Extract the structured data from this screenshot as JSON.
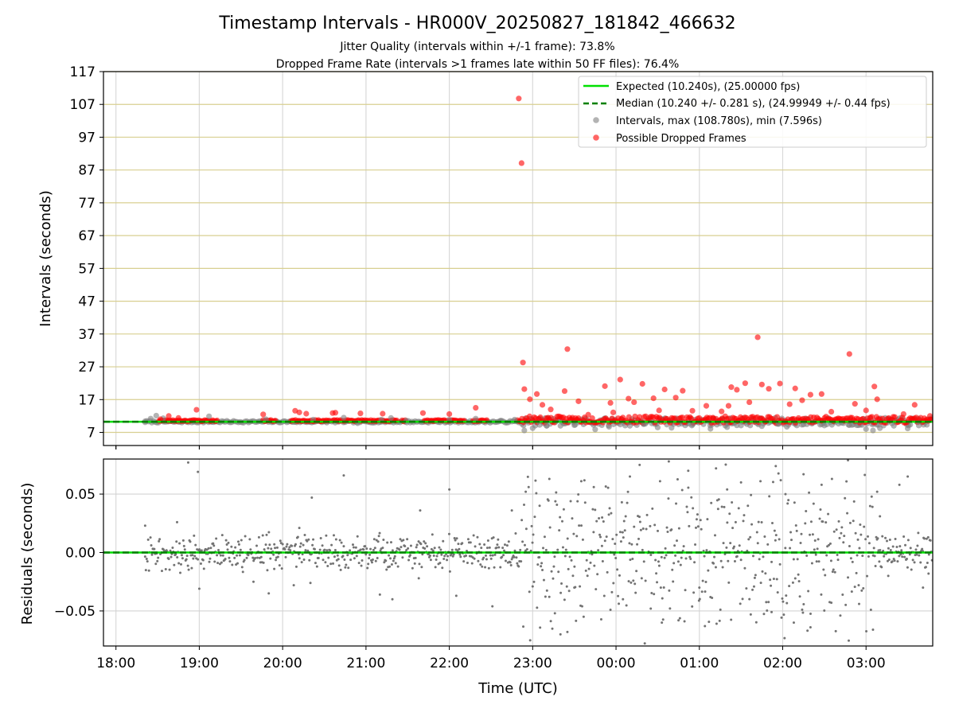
{
  "figure": {
    "title": "Timestamp Intervals - HR000V_20250827_181842_466632",
    "subtitle_1": "Jitter Quality (intervals within +/-1 frame): 73.8%",
    "subtitle_2": "Dropped Frame Rate (intervals >1 frames late within 50 FF files): 76.4%"
  },
  "chart_data": [
    {
      "type": "scatter",
      "panel": "top",
      "ylabel": "Intervals (seconds)",
      "xlabel": "",
      "xlim": [
        "17:51",
        "03:48"
      ],
      "ylim": [
        3,
        117
      ],
      "yticks": [
        7,
        17,
        27,
        37,
        47,
        57,
        67,
        77,
        87,
        97,
        107,
        117
      ],
      "xticks": [
        "18:00",
        "19:00",
        "20:00",
        "21:00",
        "22:00",
        "23:00",
        "00:00",
        "01:00",
        "02:00",
        "03:00"
      ],
      "grid": true,
      "legend_position": "top-right",
      "lines": [
        {
          "name": "Expected (10.240s), (25.00000 fps)",
          "y": 10.24,
          "color": "#00e000",
          "style": "solid"
        },
        {
          "name": "Median (10.240 +/- 0.281 s), (24.99949 +/- 0.44 fps)",
          "y": 10.24,
          "color": "#008000",
          "style": "dashed"
        }
      ],
      "series": [
        {
          "name": "Intervals, max (108.780s), min (7.596s)",
          "color": "#808080",
          "points": [
            [
              "18:21",
              10.4
            ],
            [
              "18:25",
              11.2
            ],
            [
              "18:29",
              12.1
            ],
            [
              "18:34",
              11.3
            ],
            [
              "19:07",
              11.9
            ],
            [
              "19:48",
              11.0
            ],
            [
              "20:22",
              10.9
            ],
            [
              "20:44",
              11.5
            ],
            [
              "20:54",
              9.8
            ],
            [
              "21:11",
              10.9
            ],
            [
              "21:18",
              11.4
            ],
            [
              "21:29",
              10.6
            ],
            [
              "22:00",
              10.9
            ],
            [
              "22:19",
              11.2
            ],
            [
              "22:37",
              10.6
            ],
            [
              "22:47",
              10.9
            ],
            [
              "22:54",
              7.6
            ],
            [
              "23:00",
              8.3
            ],
            [
              "23:05",
              9.3
            ],
            [
              "23:10",
              9.0
            ],
            [
              "23:20",
              9.0
            ],
            [
              "23:30",
              9.2
            ],
            [
              "23:45",
              7.9
            ],
            [
              "23:55",
              8.7
            ],
            [
              "00:10",
              9.0
            ],
            [
              "00:20",
              9.6
            ],
            [
              "00:30",
              8.5
            ],
            [
              "00:40",
              8.4
            ],
            [
              "00:55",
              9.4
            ],
            [
              "01:08",
              8.1
            ],
            [
              "01:20",
              8.6
            ],
            [
              "01:30",
              9.1
            ],
            [
              "01:45",
              8.9
            ],
            [
              "01:57",
              9.6
            ],
            [
              "02:03",
              8.7
            ],
            [
              "02:15",
              9.4
            ],
            [
              "02:30",
              9.1
            ],
            [
              "02:48",
              9.2
            ],
            [
              "03:00",
              8.0
            ],
            [
              "03:05",
              7.6
            ],
            [
              "03:10",
              8.3
            ],
            [
              "03:20",
              9.0
            ],
            [
              "03:30",
              8.2
            ],
            [
              "03:38",
              9.1
            ]
          ]
        },
        {
          "name": "Possible Dropped Frames",
          "color": "#ff0000",
          "points": [
            [
              "18:32",
              11.0
            ],
            [
              "18:38",
              12.0
            ],
            [
              "18:45",
              11.4
            ],
            [
              "18:58",
              13.9
            ],
            [
              "19:46",
              12.5
            ],
            [
              "20:09",
              13.6
            ],
            [
              "20:12",
              13.1
            ],
            [
              "20:17",
              12.7
            ],
            [
              "20:36",
              12.9
            ],
            [
              "20:38",
              13.0
            ],
            [
              "20:56",
              12.8
            ],
            [
              "21:12",
              12.7
            ],
            [
              "21:41",
              12.9
            ],
            [
              "22:00",
              12.6
            ],
            [
              "22:19",
              14.5
            ],
            [
              "22:50",
              108.8
            ],
            [
              "22:52",
              89.1
            ],
            [
              "22:53",
              28.3
            ],
            [
              "22:54",
              20.2
            ],
            [
              "22:58",
              17.1
            ],
            [
              "23:03",
              18.7
            ],
            [
              "23:07",
              15.4
            ],
            [
              "23:13",
              14.0
            ],
            [
              "23:23",
              19.6
            ],
            [
              "23:25",
              32.4
            ],
            [
              "23:33",
              16.5
            ],
            [
              "23:40",
              12.4
            ],
            [
              "23:52",
              21.1
            ],
            [
              "23:56",
              16.0
            ],
            [
              "23:58",
              13.1
            ],
            [
              "00:03",
              23.1
            ],
            [
              "00:09",
              17.3
            ],
            [
              "00:13",
              16.2
            ],
            [
              "00:19",
              21.8
            ],
            [
              "00:27",
              17.4
            ],
            [
              "00:31",
              13.7
            ],
            [
              "00:35",
              20.1
            ],
            [
              "00:43",
              17.6
            ],
            [
              "00:48",
              19.7
            ],
            [
              "00:55",
              13.6
            ],
            [
              "01:05",
              15.1
            ],
            [
              "01:10",
              11.2
            ],
            [
              "01:16",
              13.4
            ],
            [
              "01:21",
              15.1
            ],
            [
              "01:23",
              20.8
            ],
            [
              "01:27",
              20.0
            ],
            [
              "01:33",
              22.0
            ],
            [
              "01:36",
              16.2
            ],
            [
              "01:42",
              36.0
            ],
            [
              "01:45",
              21.6
            ],
            [
              "01:50",
              20.3
            ],
            [
              "01:58",
              21.9
            ],
            [
              "02:05",
              15.6
            ],
            [
              "02:09",
              20.4
            ],
            [
              "02:14",
              16.8
            ],
            [
              "02:20",
              18.5
            ],
            [
              "02:28",
              18.7
            ],
            [
              "02:35",
              13.3
            ],
            [
              "02:48",
              30.9
            ],
            [
              "02:52",
              15.7
            ],
            [
              "03:00",
              13.7
            ],
            [
              "03:06",
              21.0
            ],
            [
              "03:08",
              17.1
            ],
            [
              "03:27",
              12.6
            ],
            [
              "03:35",
              15.4
            ],
            [
              "03:42",
              11.3
            ],
            [
              "03:46",
              12.0
            ]
          ]
        }
      ]
    },
    {
      "type": "scatter",
      "panel": "bottom",
      "ylabel": "Residuals (seconds)",
      "xlabel": "Time (UTC)",
      "xlim": [
        "17:51",
        "03:48"
      ],
      "ylim": [
        -0.08,
        0.08
      ],
      "yticks": [
        -0.05,
        0.0,
        0.05
      ],
      "ytick_labels": [
        "−0.05",
        "0.00",
        "0.05"
      ],
      "xticks": [
        "18:00",
        "19:00",
        "20:00",
        "21:00",
        "22:00",
        "23:00",
        "00:00",
        "01:00",
        "02:00",
        "03:00"
      ],
      "grid": true,
      "lines": [
        {
          "name": "",
          "y": 0.0,
          "color": "#00e000",
          "style": "solid"
        },
        {
          "name": "",
          "y": 0.0,
          "color": "#008000",
          "style": "dashed"
        }
      ],
      "series": [
        {
          "name": "",
          "color": "#737373",
          "points": [
            [
              "18:21",
              0.023
            ],
            [
              "18:44",
              0.026
            ],
            [
              "18:52",
              0.077
            ],
            [
              "18:59",
              0.069
            ],
            [
              "19:00",
              -0.031
            ],
            [
              "19:39",
              -0.025
            ],
            [
              "19:50",
              -0.035
            ],
            [
              "19:54",
              0.007
            ],
            [
              "20:08",
              -0.028
            ],
            [
              "20:12",
              0.021
            ],
            [
              "20:20",
              -0.026
            ],
            [
              "20:21",
              0.047
            ],
            [
              "20:44",
              0.066
            ],
            [
              "21:10",
              -0.036
            ],
            [
              "21:19",
              -0.04
            ],
            [
              "21:38",
              -0.022
            ],
            [
              "21:39",
              0.036
            ],
            [
              "22:00",
              0.054
            ],
            [
              "22:05",
              -0.037
            ],
            [
              "22:31",
              -0.046
            ],
            [
              "22:45",
              0.036
            ],
            [
              "22:55",
              0.052
            ],
            [
              "23:00",
              -0.029
            ],
            [
              "23:05",
              0.04
            ],
            [
              "23:12",
              0.063
            ],
            [
              "23:16",
              -0.052
            ],
            [
              "23:20",
              -0.07
            ],
            [
              "23:25",
              -0.068
            ],
            [
              "23:30",
              -0.03
            ],
            [
              "23:35",
              0.061
            ],
            [
              "23:44",
              0.056
            ],
            [
              "23:50",
              0.03
            ],
            [
              "23:56",
              -0.049
            ],
            [
              "24:05",
              -0.04
            ],
            [
              "24:10",
              0.065
            ],
            [
              "24:17",
              0.075
            ],
            [
              "24:25",
              -0.048
            ],
            [
              "24:33",
              -0.06
            ],
            [
              "24:38",
              0.078
            ],
            [
              "24:45",
              -0.058
            ],
            [
              "24:52",
              0.07
            ],
            [
              "25:00",
              -0.03
            ],
            [
              "25:04",
              -0.063
            ],
            [
              "25:12",
              0.072
            ],
            [
              "25:20",
              0.054
            ],
            [
              "25:30",
              0.06
            ],
            [
              "25:37",
              -0.053
            ],
            [
              "25:44",
              0.061
            ],
            [
              "25:52",
              -0.051
            ],
            [
              "25:55",
              0.074
            ],
            [
              "26:02",
              0.05
            ],
            [
              "26:08",
              -0.06
            ],
            [
              "26:15",
              0.067
            ],
            [
              "26:20",
              -0.064
            ],
            [
              "26:28",
              0.058
            ],
            [
              "26:35",
              -0.043
            ],
            [
              "26:47",
              0.079
            ],
            [
              "26:55",
              -0.044
            ],
            [
              "27:05",
              -0.066
            ],
            [
              "27:08",
              0.052
            ],
            [
              "27:10",
              0.031
            ],
            [
              "27:16",
              -0.02
            ],
            [
              "27:24",
              0.058
            ],
            [
              "27:30",
              0.065
            ],
            [
              "27:41",
              -0.03
            ],
            [
              "27:45",
              -0.018
            ]
          ]
        }
      ]
    }
  ]
}
